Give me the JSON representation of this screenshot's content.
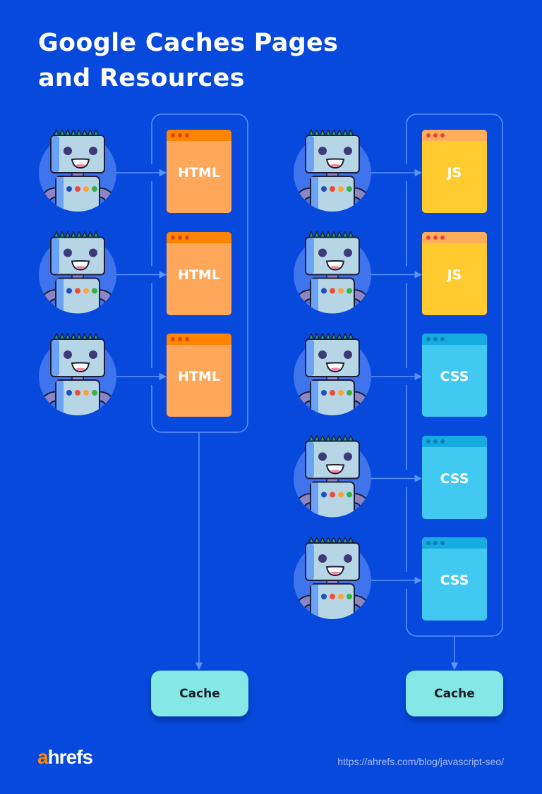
{
  "title_lines": [
    "Google Caches Pages",
    "and Resources"
  ],
  "colors": {
    "background": "#0649dc",
    "html_body": "#ffa75a",
    "html_bar": "#ff8400",
    "html_dots": "#d9480f",
    "js_body": "#ffcb2e",
    "js_bar": "#ffae5c",
    "js_dots": "#e6453a",
    "css_body": "#42c9f2",
    "css_bar": "#17ace0",
    "css_dots": "#0b7bc0",
    "cache": "#86e8e6",
    "connector": "#5c94ff"
  },
  "left_column": {
    "files": [
      {
        "type": "html",
        "label": "HTML"
      },
      {
        "type": "html",
        "label": "HTML"
      },
      {
        "type": "html",
        "label": "HTML"
      }
    ],
    "cache_label": "Cache"
  },
  "right_column": {
    "files": [
      {
        "type": "js",
        "label": "JS"
      },
      {
        "type": "js",
        "label": "JS"
      },
      {
        "type": "css",
        "label": "CSS"
      },
      {
        "type": "css",
        "label": "CSS"
      },
      {
        "type": "css",
        "label": "CSS"
      }
    ],
    "cache_label": "Cache"
  },
  "robot_icon": "googlebot-robot-icon",
  "footer": {
    "logo": "ahrefs",
    "url": "https://ahrefs.com/blog/javascript-seo/"
  }
}
